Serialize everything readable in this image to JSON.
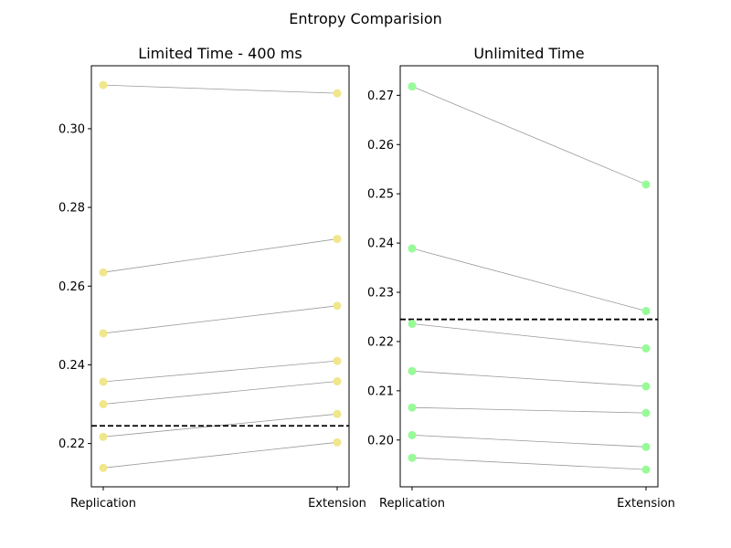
{
  "figure": {
    "title": "Entropy Comparision"
  },
  "chart_data": [
    {
      "type": "line",
      "title": "Limited Time - 400 ms",
      "categories": [
        "Replication",
        "Extension"
      ],
      "ylim": [
        0.209,
        0.316
      ],
      "yticks": [
        "0.22",
        "0.24",
        "0.26",
        "0.28",
        "0.30"
      ],
      "reference_line": 0.2245,
      "marker_color": "#f0e68c",
      "line_color": "#999999",
      "grid": false,
      "pairs": [
        [
          0.3111,
          0.309
        ],
        [
          0.2635,
          0.272
        ],
        [
          0.248,
          0.255
        ],
        [
          0.2357,
          0.241
        ],
        [
          0.23,
          0.2358
        ],
        [
          0.2217,
          0.2275
        ],
        [
          0.2138,
          0.2203
        ]
      ]
    },
    {
      "type": "line",
      "title": "Unlimited Time",
      "categories": [
        "Replication",
        "Extension"
      ],
      "ylim": [
        0.1905,
        0.276
      ],
      "yticks": [
        "0.20",
        "0.21",
        "0.22",
        "0.23",
        "0.24",
        "0.25",
        "0.26",
        "0.27"
      ],
      "reference_line": 0.2245,
      "marker_color": "#98fb98",
      "line_color": "#999999",
      "grid": false,
      "pairs": [
        [
          0.2718,
          0.2519
        ],
        [
          0.2389,
          0.2262
        ],
        [
          0.2236,
          0.2186
        ],
        [
          0.214,
          0.2109
        ],
        [
          0.2066,
          0.2055
        ],
        [
          0.201,
          0.1986
        ],
        [
          0.1964,
          0.194
        ]
      ]
    }
  ]
}
